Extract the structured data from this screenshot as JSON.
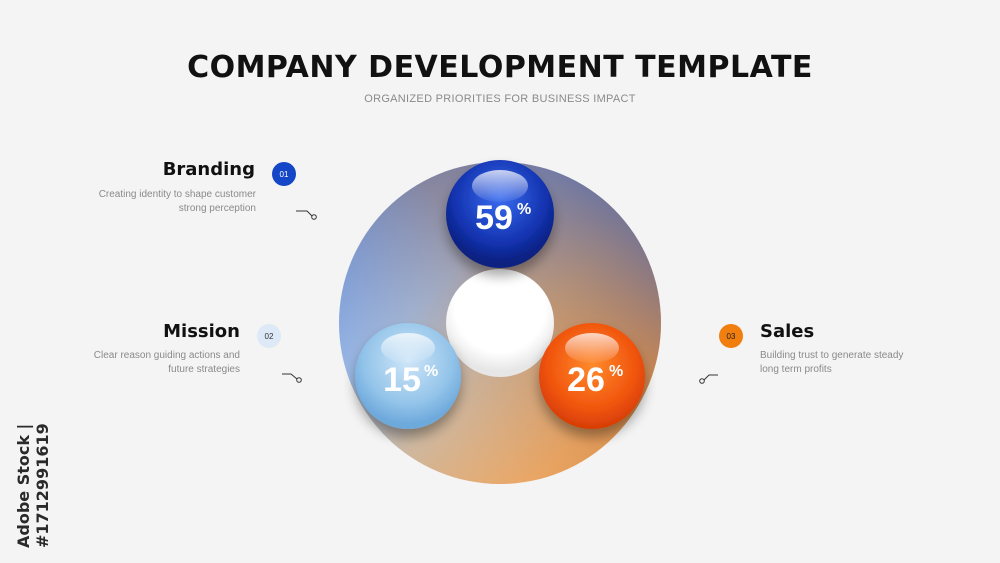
{
  "header": {
    "title": "COMPANY DEVELOPMENT TEMPLATE",
    "subtitle": "ORGANIZED PRIORITIES FOR BUSINESS IMPACT"
  },
  "items": [
    {
      "number": "01",
      "heading": "Branding",
      "desc_line1": "Creating identity to shape customer",
      "desc_line2": "strong perception",
      "percent": "59",
      "percent_sign": "%",
      "color": "#1a3fb8"
    },
    {
      "number": "02",
      "heading": "Mission",
      "desc_line1": "Clear reason guiding actions and",
      "desc_line2": "future strategies",
      "percent": "15",
      "percent_sign": "%",
      "color": "#9fcbea"
    },
    {
      "number": "03",
      "heading": "Sales",
      "desc_line1": "Building trust to generate steady",
      "desc_line2": "long term profits",
      "percent": "26",
      "percent_sign": "%",
      "color": "#f06a12"
    }
  ],
  "watermark": "Adobe Stock | #1712991619",
  "colors": {
    "ring_blue": "#3f7fe0",
    "ring_orange": "#f0a050",
    "badge_blue": "#1347c7",
    "badge_light": "#dde9f6",
    "badge_orange": "#f07f0f"
  }
}
